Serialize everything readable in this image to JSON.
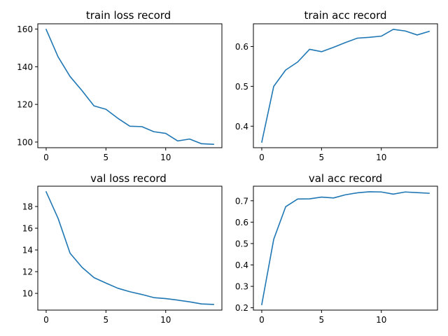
{
  "chart_data": [
    {
      "type": "line",
      "title": "train loss record",
      "xlabel": "",
      "ylabel": "",
      "x": [
        0,
        1,
        2,
        3,
        4,
        5,
        6,
        7,
        8,
        9,
        10,
        11,
        12,
        13,
        14
      ],
      "series": [
        {
          "values": [
            159.8,
            145.2,
            134.8,
            127.3,
            119.2,
            117.4,
            112.6,
            108.4,
            108.2,
            105.5,
            104.6,
            100.6,
            101.6,
            99.1,
            98.8
          ]
        }
      ],
      "xlim": [
        -0.7,
        14.7
      ],
      "ylim": [
        97.0,
        162.8
      ],
      "xticks": [
        0,
        5,
        10
      ],
      "yticks": [
        100,
        120,
        140,
        160
      ],
      "grid": false,
      "color": "#1f77b4"
    },
    {
      "type": "line",
      "title": "train acc record",
      "xlabel": "",
      "ylabel": "",
      "x": [
        0,
        1,
        2,
        3,
        4,
        5,
        6,
        7,
        8,
        9,
        10,
        11,
        12,
        13,
        14
      ],
      "series": [
        {
          "values": [
            0.36,
            0.5,
            0.541,
            0.561,
            0.593,
            0.587,
            0.598,
            0.61,
            0.621,
            0.623,
            0.626,
            0.643,
            0.639,
            0.629,
            0.638
          ]
        }
      ],
      "xlim": [
        -0.7,
        14.7
      ],
      "ylim": [
        0.346,
        0.657
      ],
      "xticks": [
        0,
        5,
        10
      ],
      "yticks": [
        0.4,
        0.5,
        0.6
      ],
      "grid": false,
      "color": "#1f77b4"
    },
    {
      "type": "line",
      "title": "val loss record",
      "xlabel": "",
      "ylabel": "",
      "x": [
        0,
        1,
        2,
        3,
        4,
        5,
        6,
        7,
        8,
        9,
        10,
        11,
        12,
        13,
        14
      ],
      "series": [
        {
          "values": [
            19.35,
            16.9,
            13.7,
            12.4,
            11.45,
            10.95,
            10.47,
            10.15,
            9.9,
            9.61,
            9.52,
            9.38,
            9.22,
            9.03,
            8.98
          ]
        }
      ],
      "xlim": [
        -0.7,
        14.7
      ],
      "ylim": [
        8.46,
        19.87
      ],
      "xticks": [
        0,
        5,
        10
      ],
      "yticks": [
        10,
        12,
        14,
        16,
        18
      ],
      "grid": false,
      "color": "#1f77b4"
    },
    {
      "type": "line",
      "title": "val acc record",
      "xlabel": "",
      "ylabel": "",
      "x": [
        0,
        1,
        2,
        3,
        4,
        5,
        6,
        7,
        8,
        9,
        10,
        11,
        12,
        13,
        14
      ],
      "series": [
        {
          "values": [
            0.215,
            0.52,
            0.672,
            0.708,
            0.709,
            0.717,
            0.713,
            0.728,
            0.737,
            0.742,
            0.741,
            0.731,
            0.741,
            0.738,
            0.735
          ]
        }
      ],
      "xlim": [
        -0.7,
        14.7
      ],
      "ylim": [
        0.189,
        0.768
      ],
      "xticks": [
        0,
        5,
        10
      ],
      "yticks": [
        0.2,
        0.3,
        0.4,
        0.5,
        0.6,
        0.7
      ],
      "grid": false,
      "color": "#1f77b4"
    }
  ]
}
